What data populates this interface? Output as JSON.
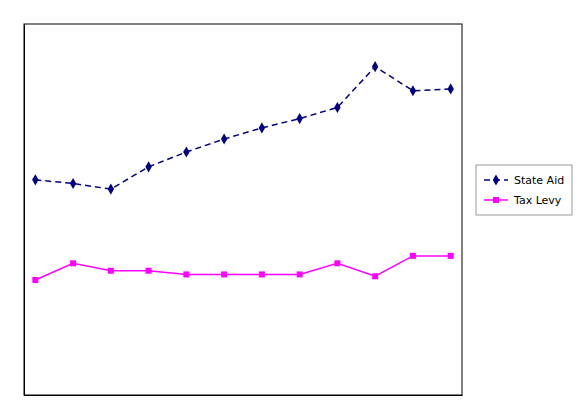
{
  "chart_data": {
    "type": "line",
    "x": [
      0,
      1,
      2,
      3,
      4,
      5,
      6,
      7,
      8,
      9,
      10,
      11
    ],
    "series": [
      {
        "name": "State Aid",
        "color": "#000080",
        "marker": "diamond",
        "line_style": "dashed",
        "values": [
          5.8,
          5.7,
          5.55,
          6.15,
          6.55,
          6.9,
          7.2,
          7.45,
          7.75,
          8.85,
          8.2,
          8.25
        ]
      },
      {
        "name": "Tax Levy",
        "color": "#ff00ff",
        "marker": "square",
        "line_style": "solid",
        "values": [
          3.1,
          3.55,
          3.35,
          3.35,
          3.25,
          3.25,
          3.25,
          3.25,
          3.55,
          3.2,
          3.75,
          3.75
        ]
      }
    ],
    "xlim": [
      -0.3,
      11.3
    ],
    "ylim": [
      0,
      10
    ],
    "tick_labels": false,
    "grid": false,
    "legend": "right"
  }
}
